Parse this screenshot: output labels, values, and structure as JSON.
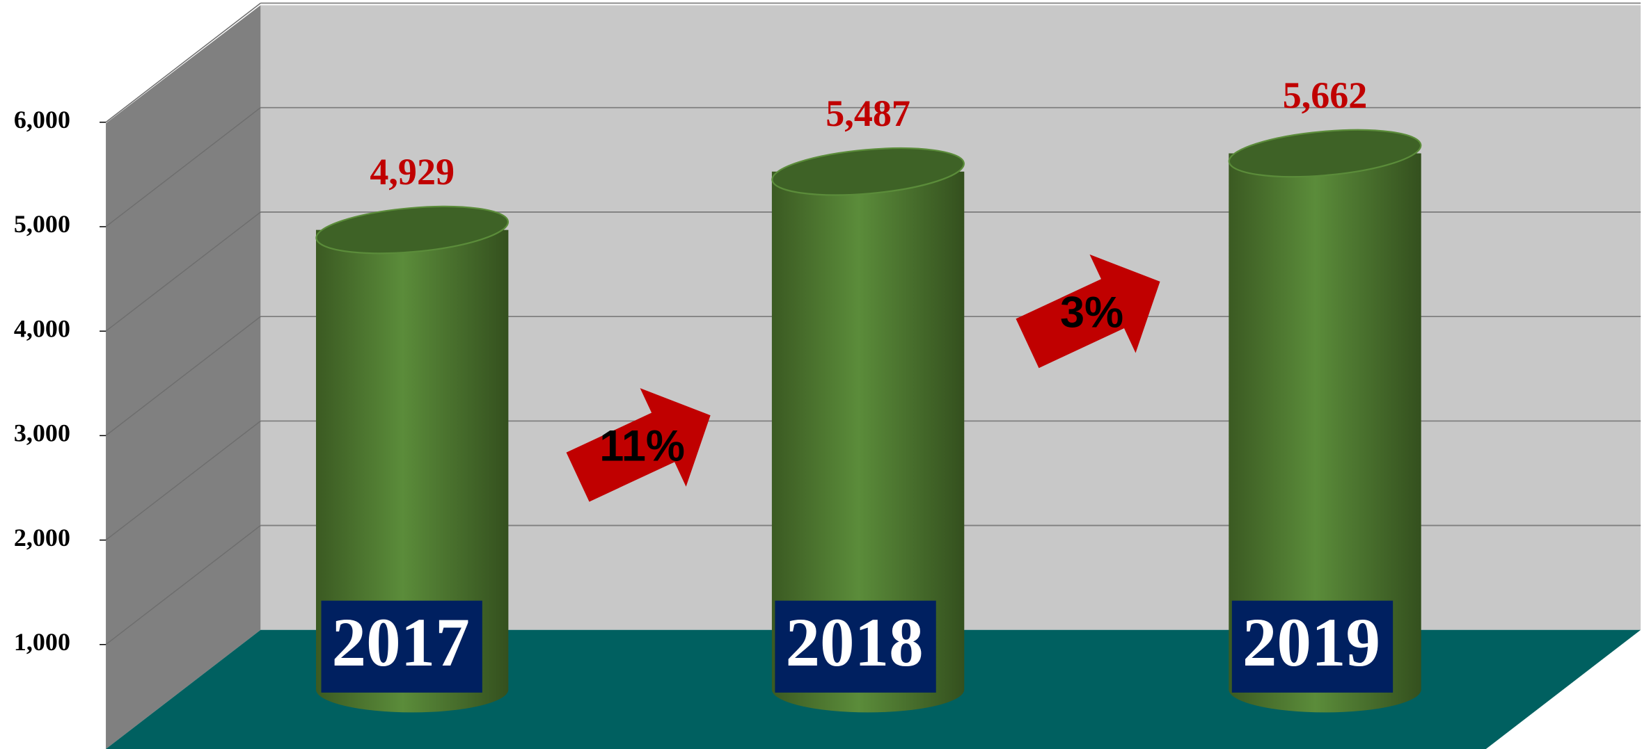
{
  "chart_data": {
    "type": "bar",
    "categories": [
      "2017",
      "2018",
      "2019"
    ],
    "values": [
      4929,
      5487,
      5662
    ],
    "value_labels": [
      "4,929",
      "5,487",
      "5,662"
    ],
    "color": "#548235",
    "ylim": [
      0,
      6000
    ],
    "yticks": [
      {
        "value": 1000,
        "label": "1,000"
      },
      {
        "value": 2000,
        "label": "2,000"
      },
      {
        "value": 3000,
        "label": "3,000"
      },
      {
        "value": 4000,
        "label": "4,000"
      },
      {
        "value": 5000,
        "label": "5,000"
      },
      {
        "value": 6000,
        "label": "6,000"
      }
    ],
    "grid": true,
    "annotations": [
      "11%",
      "3%"
    ]
  }
}
